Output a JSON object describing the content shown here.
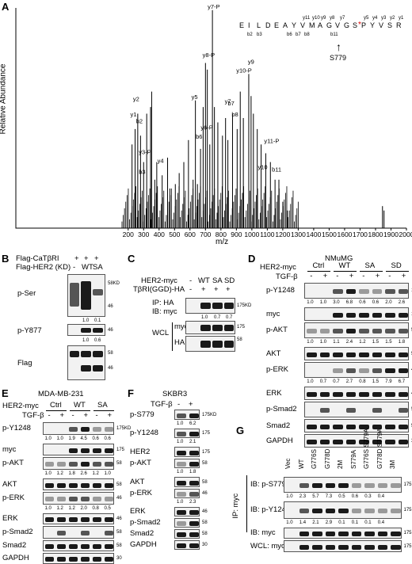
{
  "panels": {
    "A": {
      "label": "A",
      "ylabel": "Relative Abundance",
      "xlabel": "m/z",
      "xticks": [
        "200",
        "300",
        "400",
        "500",
        "600",
        "700",
        "800",
        "900",
        "1000",
        "1100",
        "1200",
        "1300",
        "1400",
        "1500",
        "1600",
        "1700",
        "1800",
        "1900",
        "2000"
      ],
      "sequence": [
        "E",
        "I",
        "L",
        "D",
        "E",
        "A",
        "Y",
        "V",
        "M",
        "A",
        "G",
        "V",
        "G",
        "S",
        "P",
        "Y",
        "V",
        "S",
        "R"
      ],
      "phospho_marker": "*",
      "y_labels_top": [
        "y11",
        "y10",
        "y9",
        "y8",
        "y7",
        "y5",
        "y4",
        "y3",
        "y2",
        "y1"
      ],
      "b_labels_bottom": [
        "b2",
        "b3",
        "b6",
        "b7",
        "b8",
        "b11"
      ],
      "site": "S779",
      "peak_labels": [
        "y7-P",
        "y5",
        "y8-P",
        "y10-P",
        "y9",
        "y1",
        "y2",
        "b2",
        "y3-P",
        "b3",
        "y4",
        "y6-P",
        "b6",
        "y7",
        "b7",
        "b8",
        "y11-P",
        "y10",
        "b11"
      ]
    },
    "B": {
      "label": "B",
      "rows": [
        "Flag-CaTβRI",
        "Flag-HER2 (KD)"
      ],
      "row_vals": [
        [
          "+",
          "+",
          "+"
        ],
        [
          "-",
          "WT",
          "SA"
        ]
      ],
      "blots": [
        "p-Ser",
        "p-Y877",
        "Flag"
      ],
      "quant": [
        "1.0",
        "0.1",
        "1.0",
        "0.6"
      ],
      "mw": [
        "58KD",
        "46",
        "46",
        "58",
        "46"
      ]
    },
    "C": {
      "label": "C",
      "rows": [
        "HER2-myc",
        "TβRI(GGD)-HA"
      ],
      "row_vals": [
        [
          "-",
          "WT",
          "SA",
          "SD"
        ],
        [
          "-",
          "+",
          "+",
          "+"
        ]
      ],
      "blots": [
        "IP: HA",
        "IB: myc",
        "WCL",
        "myc",
        "HA"
      ],
      "quant": [
        "1.0",
        "0.7",
        "0.7"
      ],
      "mw": [
        "175KD",
        "175",
        "58"
      ]
    },
    "D": {
      "label": "D",
      "title": "NMuMG",
      "rows": [
        "HER2-myc",
        "TGF-β"
      ],
      "groups": [
        "Ctrl",
        "WT",
        "SA",
        "SD"
      ],
      "tgf": [
        "-",
        "+",
        "-",
        "+",
        "-",
        "+",
        "-",
        "+"
      ],
      "blots": [
        "p-Y1248",
        "myc",
        "p-AKT",
        "AKT",
        "p-ERK",
        "ERK",
        "p-Smad2",
        "Smad2",
        "GAPDH"
      ],
      "q1": [
        "1.0",
        "1.0",
        "3.0",
        "6.8",
        "0.6",
        "0.6",
        "2.0",
        "2.6"
      ],
      "q2": [
        "1.0",
        "1.0",
        "1.1",
        "2.4",
        "1.2",
        "1.5",
        "1.5",
        "1.8"
      ],
      "q3": [
        "1.0",
        "0.7",
        "0.7",
        "2.7",
        "0.8",
        "1.5",
        "7.9",
        "6.7"
      ],
      "mw": [
        "175KD",
        "175",
        "58",
        "58",
        "46",
        "46",
        "58",
        "58",
        "30"
      ]
    },
    "E": {
      "label": "E",
      "title": "MDA-MB-231",
      "rows": [
        "HER2-myc",
        "TGF-β"
      ],
      "groups": [
        "Ctrl",
        "WT",
        "SA"
      ],
      "tgf": [
        "-",
        "+",
        "-",
        "+",
        "-",
        "+"
      ],
      "blots": [
        "p-Y1248",
        "myc",
        "p-AKT",
        "AKT",
        "p-ERK",
        "ERK",
        "p-Smad2",
        "Smad2",
        "GAPDH"
      ],
      "q1": [
        "1.0",
        "1.0",
        "1.9",
        "4.5",
        "0.6",
        "0.6"
      ],
      "q2": [
        "1.0",
        "1.2",
        "1.8",
        "2.6",
        "1.2",
        "1.0"
      ],
      "q3": [
        "1.0",
        "1.2",
        "1.2",
        "2.0",
        "0.8",
        "0.5"
      ],
      "mw": [
        "175KD",
        "175",
        "58",
        "58",
        "46",
        "46",
        "58",
        "58",
        "30"
      ]
    },
    "F": {
      "label": "F",
      "title": "SKBR3",
      "row": "TGF-β",
      "tgf": [
        "-",
        "+"
      ],
      "blots": [
        "p-S779",
        "p-Y1248",
        "HER2",
        "p-AKT",
        "AKT",
        "p-ERK",
        "ERK",
        "p-Smad2",
        "Smad2",
        "GAPDH"
      ],
      "q1": [
        "1.0",
        "6.2"
      ],
      "q2": [
        "1.0",
        "2.1"
      ],
      "q3": [
        "1.0",
        "1.8"
      ],
      "q4": [
        "1.0",
        "2.3"
      ],
      "mw": [
        "175KD",
        "175",
        "175",
        "58",
        "58",
        "46",
        "46",
        "58",
        "58",
        "30"
      ]
    },
    "G": {
      "label": "G",
      "lanes": [
        "Vec",
        "WT",
        "G776S",
        "G778D",
        "2M",
        "S779A",
        "G776S S779A",
        "G778D S779A",
        "3M"
      ],
      "side_label": "IP: myc",
      "blots": [
        "IB: p-S779",
        "IB: p-Y1248",
        "IB: myc",
        "WCL: myc"
      ],
      "q1": [
        "1.0",
        "2.3",
        "5.7",
        "7.3",
        "0.5",
        "0.6",
        "0.3",
        "0.4"
      ],
      "q2": [
        "1.0",
        "1.4",
        "2.1",
        "2.9",
        "0.1",
        "0.1",
        "0.1",
        "0.4"
      ],
      "mw": [
        "175KD",
        "175",
        "175",
        "175"
      ]
    }
  }
}
